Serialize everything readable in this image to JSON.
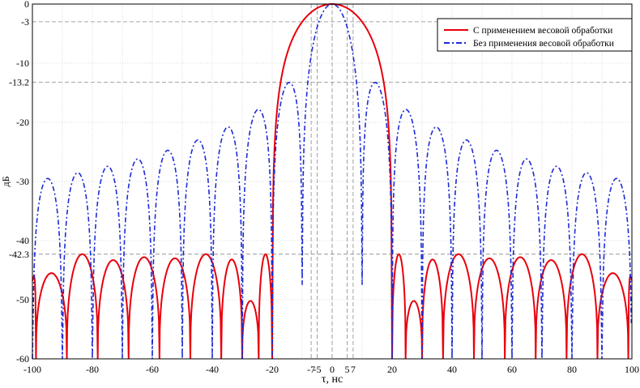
{
  "chart_data": {
    "type": "line",
    "title": "",
    "xlabel": "τ, нс",
    "ylabel": "дБ",
    "xlim": [
      -100,
      100
    ],
    "ylim": [
      -60,
      0
    ],
    "grid": true,
    "legend_position": "top-right",
    "x_ticks": [
      -100,
      -80,
      -60,
      -40,
      -20,
      20,
      40,
      60,
      80,
      100
    ],
    "x_tick_labels": [
      "-100",
      "-80",
      "-60",
      "-40",
      "-20",
      "20",
      "40",
      "60",
      "80",
      "100"
    ],
    "x_ticks_minor": [
      -7,
      -5,
      0,
      5,
      7
    ],
    "x_ticks_minor_labels": [
      "-7",
      "-5",
      "0",
      "5",
      "7"
    ],
    "y_ticks": [
      0,
      -3,
      -10,
      -13.2,
      -20,
      -30,
      -40,
      -42.3,
      -50,
      -60
    ],
    "y_tick_labels": [
      "0",
      "-3",
      "-10",
      "-13.2",
      "-20",
      "-30",
      "-40",
      "-42.3",
      "-50",
      "-60"
    ],
    "reference_lines": {
      "horizontal": [
        -3,
        -13.2,
        -42.3
      ],
      "vertical": [
        -7,
        -5,
        0,
        5,
        7
      ]
    },
    "series": [
      {
        "name": "С применением весовой обработки",
        "color": "#e8000b",
        "style": "solid",
        "mainlobe_null": 20,
        "sidelobe_period": 10.3,
        "sidelobe_first_null": 20,
        "sidelobe_peaks": [
          [
            22,
            -42.3
          ],
          [
            28,
            -50.2
          ],
          [
            32.5,
            -43.2
          ],
          [
            42.5,
            -42.3
          ],
          [
            52.5,
            -43.0
          ],
          [
            62.5,
            -42.8
          ],
          [
            72.5,
            -43.3
          ],
          [
            82.5,
            -42.3
          ],
          [
            92.5,
            -45.5
          ],
          [
            100,
            -46.0
          ]
        ]
      },
      {
        "name": "Без применения весовой обработки",
        "color": "#1d2bd6",
        "style": "dashdot",
        "null_spacing": 10,
        "mainlobe_null": 10,
        "peaks": [
          [
            0,
            0
          ],
          [
            14.3,
            -13.2
          ],
          [
            24.6,
            -17.8
          ],
          [
            34.9,
            -20.8
          ],
          [
            45.1,
            -22.9
          ],
          [
            55.3,
            -24.6
          ],
          [
            65.4,
            -25.9
          ],
          [
            75.5,
            -27.1
          ],
          [
            85.6,
            -28.1
          ],
          [
            95.6,
            -29.0
          ]
        ],
        "inner_null_depth": -47.5
      }
    ]
  }
}
